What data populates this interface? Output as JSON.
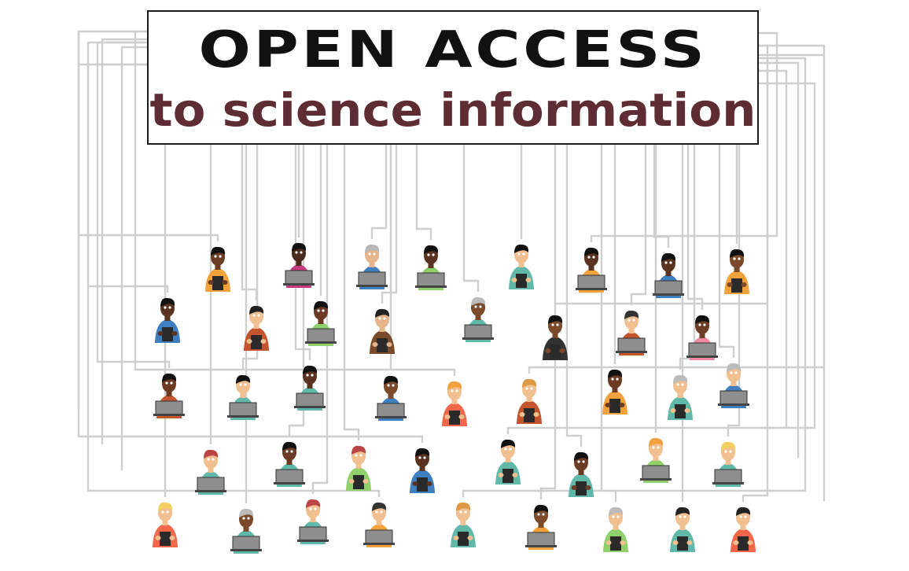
{
  "title": {
    "line1": "OPEN ACCESS",
    "line2": "to science information"
  },
  "colors": {
    "line1": "#111111",
    "line2": "#5e2d33",
    "wire": "#cfcfcf",
    "border": "#1a1a1a"
  }
}
